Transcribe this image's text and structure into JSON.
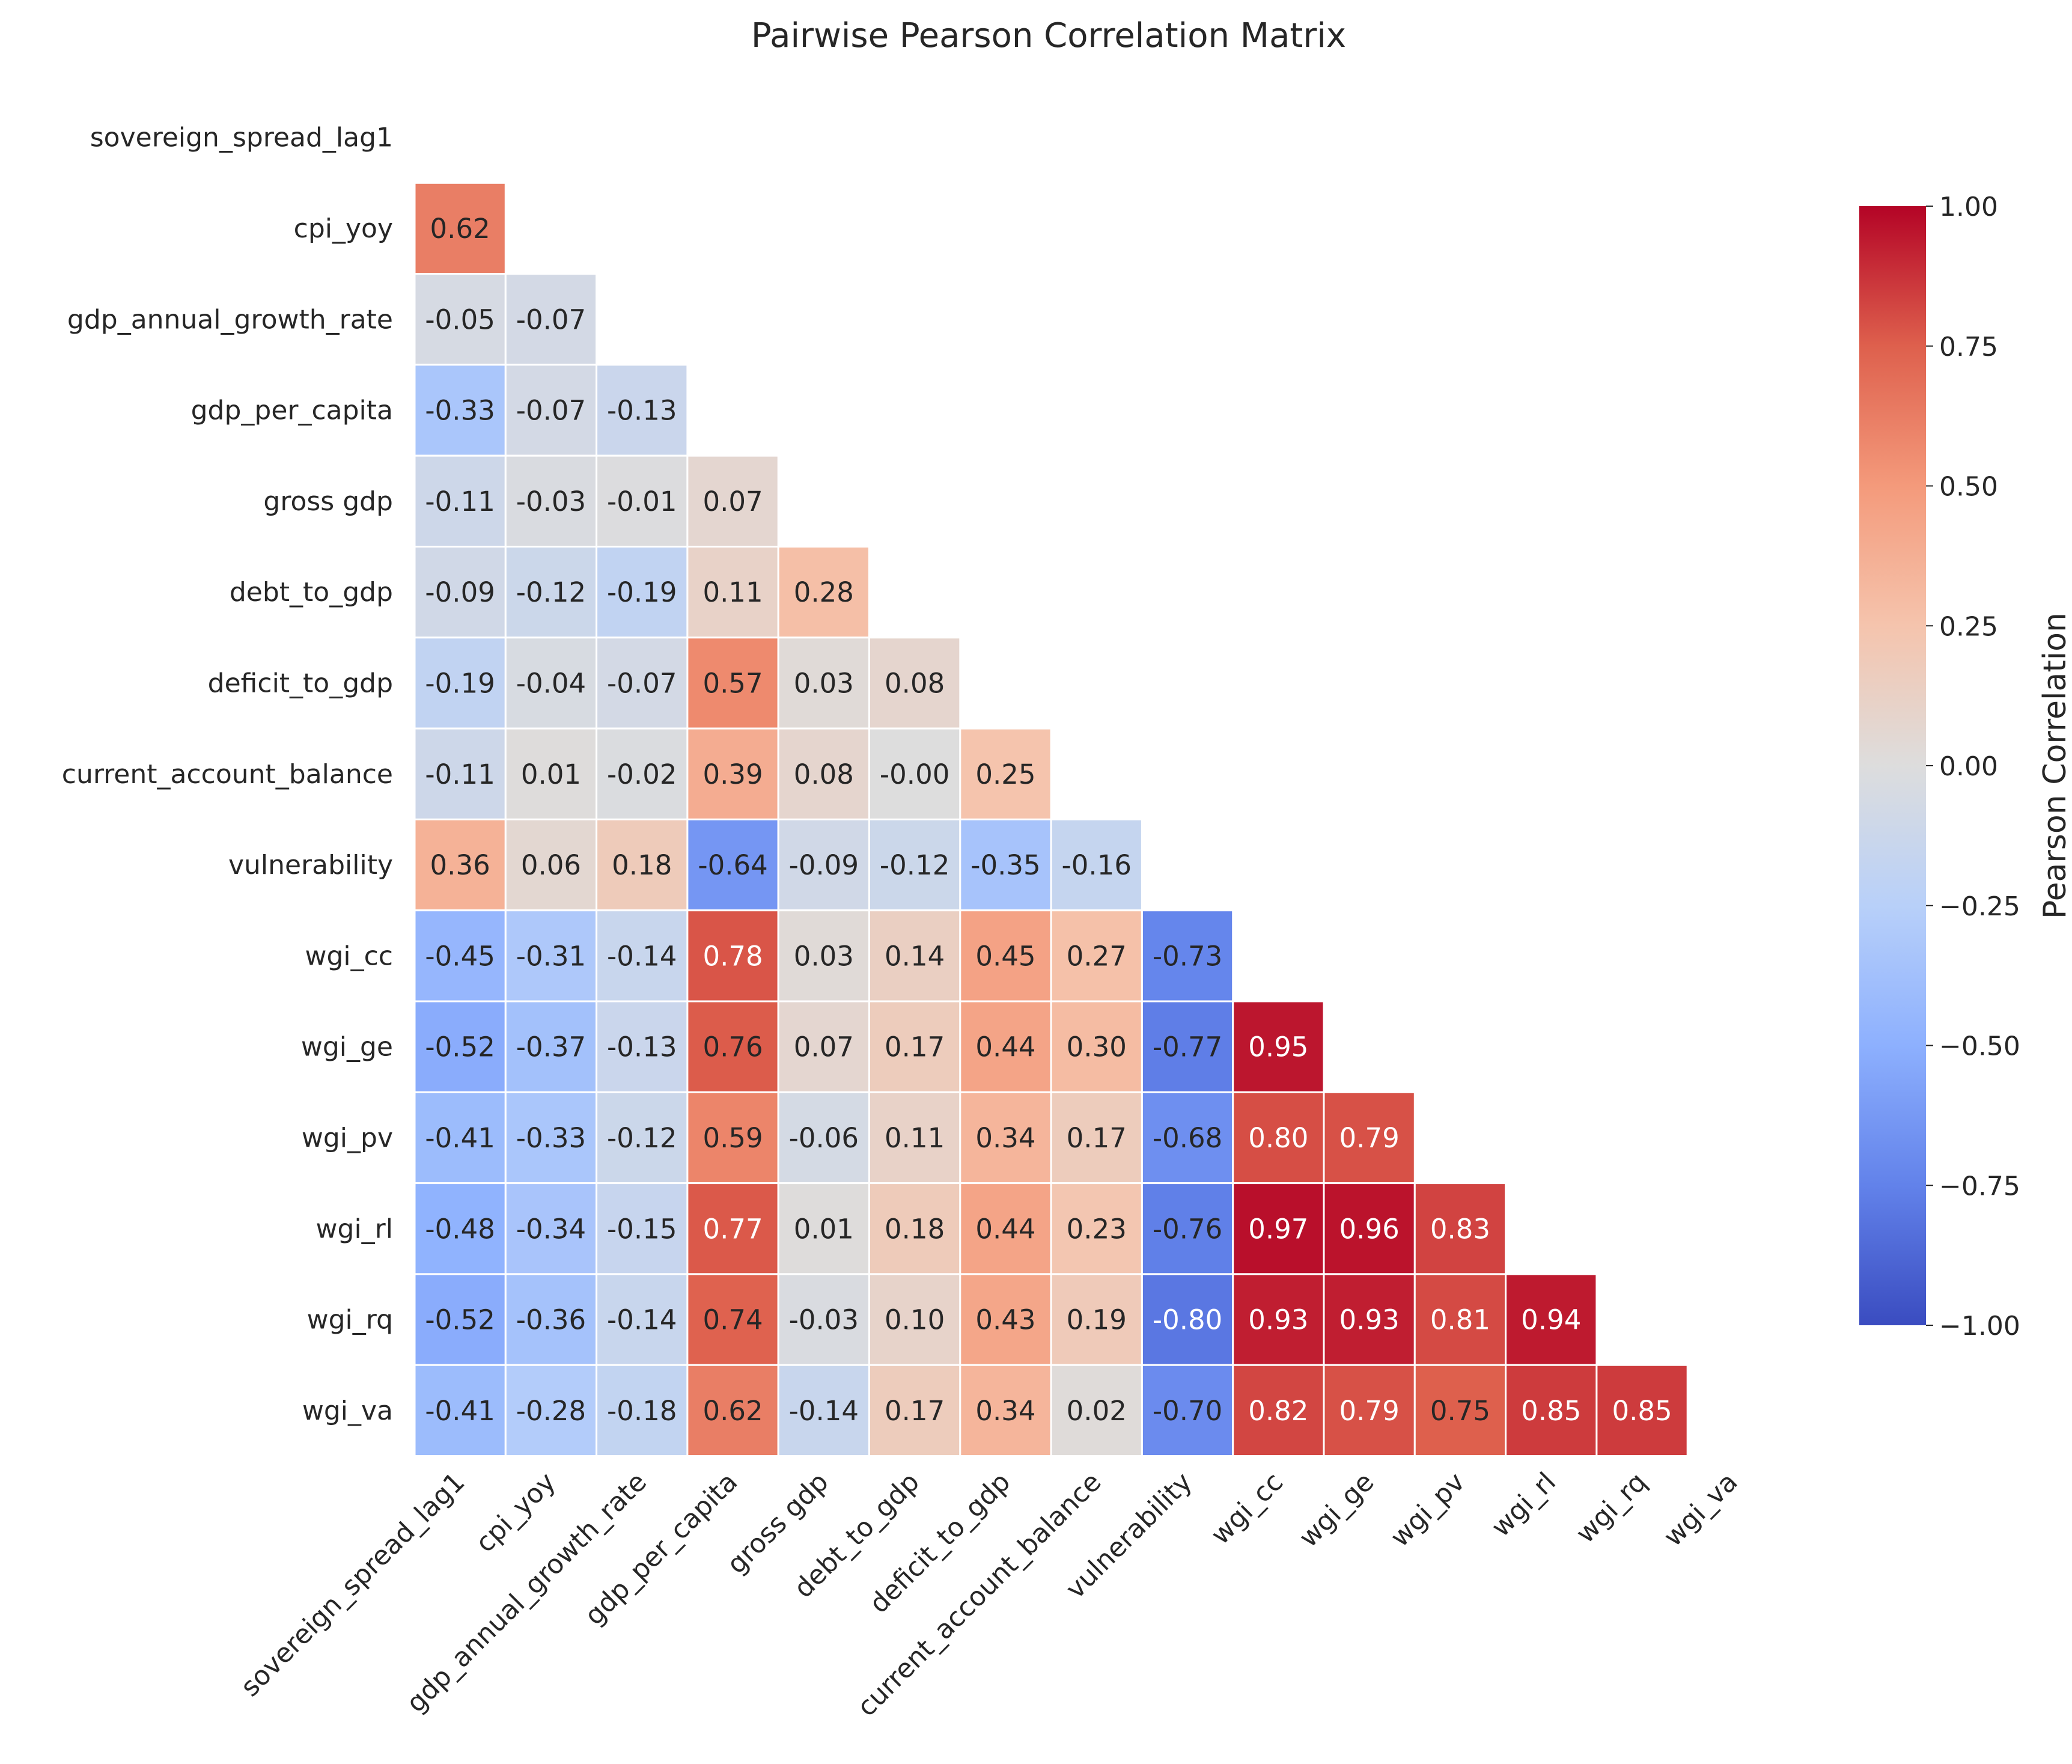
{
  "chart_data": {
    "type": "heatmap",
    "title": "Pairwise Pearson Correlation Matrix",
    "colorbar_label": "Pearson Correlation",
    "colormap": "coolwarm",
    "vmin": -1.0,
    "vmax": 1.0,
    "colorbar_ticks": [
      "1.00",
      "0.75",
      "0.50",
      "0.25",
      "0.00",
      "−0.25",
      "−0.50",
      "−0.75",
      "−1.00"
    ],
    "colorbar_tick_values": [
      1.0,
      0.75,
      0.5,
      0.25,
      0.0,
      -0.25,
      -0.5,
      -0.75,
      -1.0
    ],
    "mask": "upper_triangle_including_diagonal",
    "variables": [
      "sovereign_spread_lag1",
      "cpi_yoy",
      "gdp_annual_growth_rate",
      "gdp_per_capita",
      "gross gdp",
      "debt_to_gdp",
      "deficit_to_gdp",
      "current_account_balance",
      "vulnerability",
      "wgi_cc",
      "wgi_ge",
      "wgi_pv",
      "wgi_rl",
      "wgi_rq",
      "wgi_va"
    ],
    "rows": [
      [],
      [
        0.62
      ],
      [
        -0.05,
        -0.07
      ],
      [
        -0.33,
        -0.07,
        -0.13
      ],
      [
        -0.11,
        -0.03,
        -0.01,
        0.07
      ],
      [
        -0.09,
        -0.12,
        -0.19,
        0.11,
        0.28
      ],
      [
        -0.19,
        -0.04,
        -0.07,
        0.57,
        0.03,
        0.08
      ],
      [
        -0.11,
        0.01,
        -0.02,
        0.39,
        0.08,
        -0.0,
        0.25
      ],
      [
        0.36,
        0.06,
        0.18,
        -0.64,
        -0.09,
        -0.12,
        -0.35,
        -0.16
      ],
      [
        -0.45,
        -0.31,
        -0.14,
        0.78,
        0.03,
        0.14,
        0.45,
        0.27,
        -0.73
      ],
      [
        -0.52,
        -0.37,
        -0.13,
        0.76,
        0.07,
        0.17,
        0.44,
        0.3,
        -0.77,
        0.95
      ],
      [
        -0.41,
        -0.33,
        -0.12,
        0.59,
        -0.06,
        0.11,
        0.34,
        0.17,
        -0.68,
        0.8,
        0.79
      ],
      [
        -0.48,
        -0.34,
        -0.15,
        0.77,
        0.01,
        0.18,
        0.44,
        0.23,
        -0.76,
        0.97,
        0.96,
        0.83
      ],
      [
        -0.52,
        -0.36,
        -0.14,
        0.74,
        -0.03,
        0.1,
        0.43,
        0.19,
        -0.8,
        0.93,
        0.93,
        0.81,
        0.94
      ],
      [
        -0.41,
        -0.28,
        -0.18,
        0.62,
        -0.14,
        0.17,
        0.34,
        0.02,
        -0.7,
        0.82,
        0.79,
        0.75,
        0.85,
        0.85
      ]
    ],
    "labels": [
      [],
      [
        "0.62"
      ],
      [
        "-0.05",
        "-0.07"
      ],
      [
        "-0.33",
        "-0.07",
        "-0.13"
      ],
      [
        "-0.11",
        "-0.03",
        "-0.01",
        "0.07"
      ],
      [
        "-0.09",
        "-0.12",
        "-0.19",
        "0.11",
        "0.28"
      ],
      [
        "-0.19",
        "-0.04",
        "-0.07",
        "0.57",
        "0.03",
        "0.08"
      ],
      [
        "-0.11",
        "0.01",
        "-0.02",
        "0.39",
        "0.08",
        "-0.00",
        "0.25"
      ],
      [
        "0.36",
        "0.06",
        "0.18",
        "-0.64",
        "-0.09",
        "-0.12",
        "-0.35",
        "-0.16"
      ],
      [
        "-0.45",
        "-0.31",
        "-0.14",
        "0.78",
        "0.03",
        "0.14",
        "0.45",
        "0.27",
        "-0.73"
      ],
      [
        "-0.52",
        "-0.37",
        "-0.13",
        "0.76",
        "0.07",
        "0.17",
        "0.44",
        "0.30",
        "-0.77",
        "0.95"
      ],
      [
        "-0.41",
        "-0.33",
        "-0.12",
        "0.59",
        "-0.06",
        "0.11",
        "0.34",
        "0.17",
        "-0.68",
        "0.80",
        "0.79"
      ],
      [
        "-0.48",
        "-0.34",
        "-0.15",
        "0.77",
        "0.01",
        "0.18",
        "0.44",
        "0.23",
        "-0.76",
        "0.97",
        "0.96",
        "0.83"
      ],
      [
        "-0.52",
        "-0.36",
        "-0.14",
        "0.74",
        "-0.03",
        "0.10",
        "0.43",
        "0.19",
        "-0.80",
        "0.93",
        "0.93",
        "0.81",
        "0.94"
      ],
      [
        "-0.41",
        "-0.28",
        "-0.18",
        "0.62",
        "-0.14",
        "0.17",
        "0.34",
        "0.02",
        "-0.70",
        "0.82",
        "0.79",
        "0.75",
        "0.85",
        "0.85"
      ]
    ]
  }
}
